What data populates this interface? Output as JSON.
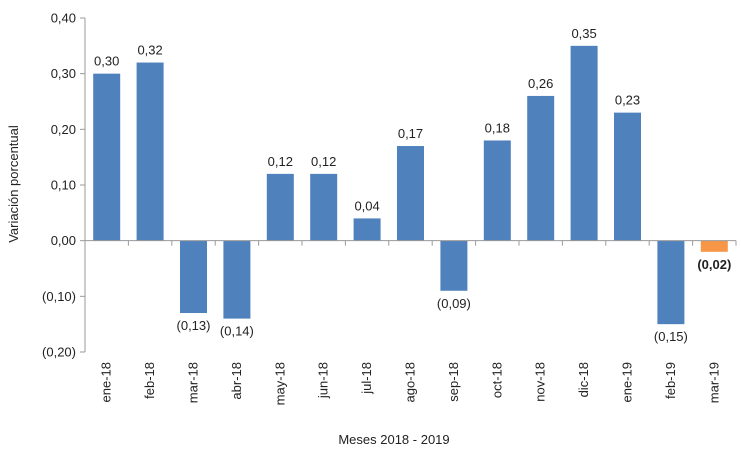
{
  "chart_data": {
    "type": "bar",
    "title": "",
    "xlabel": "Meses 2018 - 2019",
    "ylabel": "Variación porcentual",
    "ylim": [
      -0.2,
      0.4
    ],
    "yticks": [
      0.4,
      0.3,
      0.2,
      0.1,
      0.0,
      -0.1,
      -0.2
    ],
    "ytick_labels": [
      "0,40",
      "0,30",
      "0,20",
      "0,10",
      "0,00",
      "(0,10)",
      "(0,20)"
    ],
    "categories": [
      "ene-18",
      "feb-18",
      "mar-18",
      "abr-18",
      "may-18",
      "jun-18",
      "jul-18",
      "ago-18",
      "sep-18",
      "oct-18",
      "nov-18",
      "dic-18",
      "ene-19",
      "feb-19",
      "mar-19"
    ],
    "values": [
      0.3,
      0.32,
      -0.13,
      -0.14,
      0.12,
      0.12,
      0.04,
      0.17,
      -0.09,
      0.18,
      0.26,
      0.35,
      0.23,
      -0.15,
      -0.02
    ],
    "value_labels": [
      "0,30",
      "0,32",
      "(0,13)",
      "(0,14)",
      "0,12",
      "0,12",
      "0,04",
      "0,17",
      "(0,09)",
      "0,18",
      "0,26",
      "0,35",
      "0,23",
      "(0,15)",
      "(0,02)"
    ],
    "bar_color": "#4f81bd",
    "highlight_color": "#f79646",
    "highlight_index": 14,
    "grid": false
  }
}
